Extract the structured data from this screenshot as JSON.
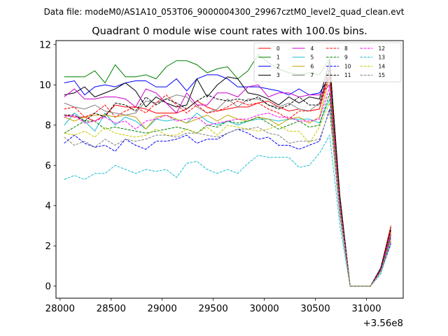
{
  "suptitle": "Data file: modeM0/AS1A10_053T06_9000004300_29967cztM0_level2_quad_clean.evt",
  "chart_data": {
    "type": "line",
    "title": "Quadrant 0 module wise count rates with 100.0s bins.",
    "xlabel": "",
    "ylabel": "",
    "x_offset_label": "+3.56e8",
    "xlim": [
      27960,
      31360
    ],
    "ylim": [
      -0.6,
      12.2
    ],
    "x_ticks": [
      28000,
      28500,
      29000,
      29500,
      30000,
      30500,
      31000
    ],
    "x_tick_labels": [
      "28000",
      "28500",
      "29000",
      "29500",
      "30000",
      "30500",
      "31000"
    ],
    "y_ticks": [
      0,
      2,
      4,
      6,
      8,
      10,
      12
    ],
    "y_tick_labels": [
      "0",
      "2",
      "4",
      "6",
      "8",
      "10",
      "12"
    ],
    "legend_location": "upper right",
    "x": [
      28040,
      28140,
      28240,
      28340,
      28440,
      28540,
      28640,
      28740,
      28840,
      28940,
      29040,
      29140,
      29240,
      29340,
      29440,
      29540,
      29640,
      29740,
      29840,
      29940,
      30040,
      30140,
      30240,
      30340,
      30440,
      30540,
      30640,
      30740,
      30840,
      30940,
      31040,
      31140,
      31240
    ],
    "series": [
      {
        "name": "0",
        "color": "#ff0000",
        "dash": "solid",
        "values": [
          8.5,
          8.4,
          8.4,
          8.2,
          8.5,
          9.0,
          8.9,
          8.9,
          8.8,
          8.6,
          8.6,
          8.6,
          8.8,
          9.2,
          8.9,
          8.7,
          8.8,
          8.9,
          8.9,
          9.1,
          9.2,
          8.9,
          8.7,
          8.8,
          8.7,
          8.8,
          10.8,
          4.2,
          0.0,
          0.0,
          0.0,
          0.9,
          3.0
        ]
      },
      {
        "name": "1",
        "color": "#008000",
        "dash": "solid",
        "values": [
          10.4,
          10.4,
          10.4,
          10.7,
          10.1,
          11.0,
          10.4,
          10.4,
          10.5,
          10.3,
          10.9,
          11.2,
          11.2,
          11.0,
          10.6,
          10.8,
          10.9,
          10.3,
          10.7,
          11.5,
          11.1,
          10.8,
          10.6,
          10.5,
          10.6,
          10.5,
          11.3,
          4.0,
          0.0,
          0.0,
          0.0,
          0.8,
          2.6
        ]
      },
      {
        "name": "2",
        "color": "#0000ff",
        "dash": "solid",
        "values": [
          10.1,
          10.2,
          9.5,
          9.9,
          10.0,
          9.9,
          10.1,
          10.2,
          10.2,
          9.9,
          9.9,
          10.3,
          9.7,
          10.3,
          10.5,
          10.5,
          10.3,
          9.9,
          9.9,
          9.9,
          9.8,
          9.7,
          9.5,
          9.8,
          9.5,
          9.6,
          10.4,
          4.0,
          0.0,
          0.0,
          0.0,
          0.8,
          2.2
        ]
      },
      {
        "name": "3",
        "color": "#000000",
        "dash": "solid",
        "values": [
          9.5,
          9.6,
          9.9,
          9.4,
          9.6,
          9.8,
          10.1,
          9.7,
          8.9,
          9.4,
          9.1,
          8.9,
          9.0,
          10.3,
          9.4,
          10.0,
          10.4,
          10.3,
          9.6,
          9.5,
          9.3,
          9.0,
          9.4,
          9.1,
          9.4,
          9.3,
          11.2,
          4.5,
          0.0,
          0.0,
          0.0,
          0.9,
          2.8
        ]
      },
      {
        "name": "4",
        "color": "#cc00cc",
        "dash": "solid",
        "values": [
          9.4,
          9.8,
          9.3,
          9.3,
          9.4,
          9.4,
          9.3,
          8.9,
          9.8,
          9.6,
          9.1,
          8.6,
          9.6,
          9.0,
          9.0,
          9.6,
          9.6,
          9.4,
          9.9,
          10.0,
          9.4,
          9.6,
          9.6,
          9.4,
          9.5,
          9.5,
          10.0,
          4.0,
          0.0,
          0.0,
          0.0,
          0.8,
          2.4
        ]
      },
      {
        "name": "5",
        "color": "#17becf",
        "dash": "solid",
        "values": [
          8.0,
          8.6,
          8.2,
          7.7,
          8.6,
          8.0,
          8.4,
          8.2,
          7.8,
          8.3,
          8.2,
          8.3,
          8.1,
          8.6,
          8.2,
          8.0,
          8.2,
          8.0,
          8.2,
          8.3,
          8.3,
          8.2,
          8.3,
          8.3,
          8.3,
          8.1,
          9.3,
          3.9,
          0.0,
          0.0,
          0.0,
          0.8,
          2.5
        ]
      },
      {
        "name": "6",
        "color": "#c8a000",
        "dash": "solid",
        "values": [
          8.4,
          8.2,
          8.4,
          8.5,
          8.5,
          8.4,
          8.5,
          8.4,
          7.8,
          8.4,
          8.5,
          8.3,
          8.1,
          8.3,
          8.5,
          8.2,
          8.5,
          8.3,
          8.2,
          8.4,
          8.3,
          8.0,
          8.3,
          8.4,
          8.1,
          8.4,
          10.4,
          4.0,
          0.0,
          0.0,
          0.0,
          0.8,
          2.7
        ]
      },
      {
        "name": "7",
        "color": "#808080",
        "dash": "solid",
        "values": [
          9.1,
          8.9,
          8.8,
          9.0,
          8.7,
          8.6,
          8.5,
          8.6,
          9.2,
          9.1,
          9.3,
          9.5,
          9.4,
          8.9,
          8.6,
          8.8,
          9.3,
          8.9,
          9.3,
          9.3,
          9.0,
          8.9,
          9.1,
          8.8,
          8.7,
          9.1,
          10.8,
          4.3,
          0.0,
          0.0,
          0.0,
          0.8,
          2.6
        ]
      },
      {
        "name": "8",
        "color": "#ff0000",
        "dash": "dashed",
        "values": [
          8.8,
          8.9,
          8.4,
          8.6,
          9.0,
          8.4,
          8.7,
          8.9,
          8.6,
          9.1,
          9.5,
          9.0,
          8.6,
          9.0,
          8.6,
          8.7,
          8.9,
          9.2,
          9.0,
          9.1,
          8.8,
          8.6,
          8.3,
          8.7,
          8.7,
          8.8,
          10.5,
          4.2,
          0.0,
          0.0,
          0.0,
          0.8,
          2.8
        ]
      },
      {
        "name": "9",
        "color": "#008000",
        "dash": "dashed",
        "values": [
          7.6,
          7.9,
          8.2,
          8.2,
          7.8,
          7.9,
          7.8,
          7.7,
          7.6,
          7.7,
          7.8,
          7.9,
          7.8,
          7.6,
          8.0,
          7.9,
          8.2,
          8.1,
          8.2,
          8.4,
          8.1,
          7.8,
          8.0,
          8.2,
          7.9,
          8.0,
          9.6,
          3.8,
          0.0,
          0.0,
          0.0,
          0.8,
          2.5
        ]
      },
      {
        "name": "10",
        "color": "#0000ff",
        "dash": "dashed",
        "values": [
          7.1,
          7.5,
          7.1,
          6.9,
          7.0,
          6.7,
          7.3,
          7.0,
          6.8,
          7.2,
          7.2,
          7.3,
          7.5,
          7.1,
          7.3,
          7.3,
          7.6,
          7.8,
          7.6,
          7.3,
          7.4,
          7.0,
          7.0,
          6.8,
          7.0,
          7.2,
          8.8,
          3.5,
          0.0,
          0.0,
          0.0,
          0.7,
          2.1
        ]
      },
      {
        "name": "11",
        "color": "#000000",
        "dash": "dashed",
        "values": [
          8.5,
          8.5,
          8.2,
          8.6,
          8.4,
          9.1,
          9.0,
          8.7,
          9.4,
          9.0,
          9.3,
          9.1,
          8.8,
          9.2,
          9.5,
          9.3,
          9.2,
          9.3,
          9.2,
          9.4,
          9.0,
          8.8,
          9.0,
          9.4,
          9.0,
          9.0,
          10.9,
          4.4,
          0.0,
          0.0,
          0.0,
          0.9,
          2.9
        ]
      },
      {
        "name": "12",
        "color": "#ff00ff",
        "dash": "dashed",
        "values": [
          8.4,
          8.5,
          8.1,
          8.2,
          8.4,
          8.1,
          8.2,
          7.8,
          8.2,
          8.3,
          8.5,
          8.2,
          8.3,
          8.4,
          8.0,
          8.1,
          8.2,
          8.3,
          8.3,
          8.5,
          8.6,
          8.4,
          8.4,
          8.2,
          8.2,
          8.3,
          9.9,
          4.0,
          0.0,
          0.0,
          0.0,
          0.8,
          2.6
        ]
      },
      {
        "name": "13",
        "color": "#17becf",
        "dash": "dashed",
        "values": [
          5.3,
          5.5,
          5.3,
          5.6,
          5.6,
          6.0,
          5.8,
          5.6,
          5.8,
          5.7,
          5.8,
          5.4,
          6.1,
          6.2,
          5.8,
          5.6,
          5.8,
          5.6,
          6.1,
          6.5,
          6.4,
          6.4,
          6.4,
          5.9,
          6.0,
          6.6,
          7.5,
          3.0,
          0.0,
          0.0,
          0.0,
          0.6,
          2.2
        ]
      },
      {
        "name": "14",
        "color": "#c8c800",
        "dash": "dashed",
        "values": [
          7.6,
          7.5,
          7.7,
          7.4,
          7.9,
          7.6,
          7.5,
          7.4,
          7.5,
          7.8,
          7.5,
          7.5,
          7.8,
          7.6,
          7.9,
          7.5,
          8.0,
          7.9,
          7.8,
          7.7,
          7.8,
          8.0,
          7.7,
          7.7,
          7.1,
          7.9,
          9.1,
          3.7,
          0.0,
          0.0,
          0.0,
          0.7,
          2.3
        ]
      },
      {
        "name": "15",
        "color": "#808080",
        "dash": "dashed",
        "values": [
          7.4,
          7.0,
          7.2,
          6.9,
          7.3,
          7.0,
          7.3,
          7.2,
          7.3,
          7.5,
          7.5,
          7.4,
          7.6,
          7.6,
          7.5,
          7.4,
          7.6,
          7.8,
          7.8,
          7.9,
          7.6,
          7.5,
          7.1,
          7.2,
          7.2,
          7.3,
          8.7,
          3.5,
          0.0,
          0.0,
          0.0,
          0.7,
          2.2
        ]
      }
    ]
  }
}
